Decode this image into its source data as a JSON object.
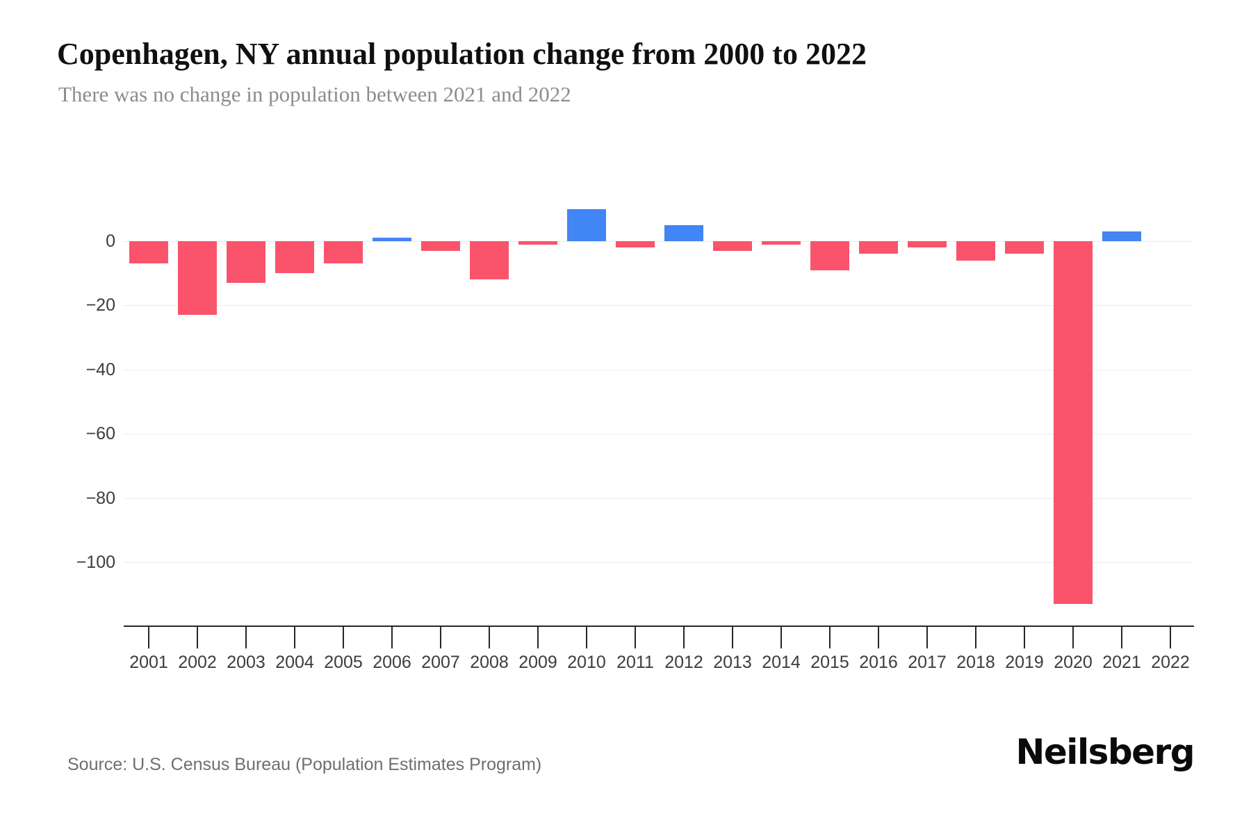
{
  "header": {
    "title": "Copenhagen, NY annual population change from 2000 to 2022",
    "subtitle": "There was no change in population between 2021 and 2022"
  },
  "footer": {
    "source": "Source: U.S. Census Bureau (Population Estimates Program)",
    "brand": "Neilsberg"
  },
  "chart_data": {
    "type": "bar",
    "title": "Copenhagen, NY annual population change from 2000 to 2022",
    "subtitle": "There was no change in population between 2021 and 2022",
    "categories": [
      "2001",
      "2002",
      "2003",
      "2004",
      "2005",
      "2006",
      "2007",
      "2008",
      "2009",
      "2010",
      "2011",
      "2012",
      "2013",
      "2014",
      "2015",
      "2016",
      "2017",
      "2018",
      "2019",
      "2020",
      "2021",
      "2022"
    ],
    "values": [
      -7,
      -23,
      -13,
      -10,
      -7,
      1,
      -3,
      -12,
      -1,
      10,
      -2,
      5,
      -3,
      -1,
      -9,
      -4,
      -2,
      -6,
      -4,
      -113,
      3,
      0
    ],
    "xlabel": "",
    "ylabel": "",
    "ylim": [
      -120,
      15
    ],
    "yticks": [
      0,
      -20,
      -40,
      -60,
      -80,
      -100
    ],
    "ytick_labels": [
      "0",
      "−20",
      "−40",
      "−60",
      "−80",
      "−100"
    ],
    "grid": true,
    "legend": false,
    "colors": {
      "positive": "#4285F4",
      "negative": "#F9546C"
    }
  }
}
